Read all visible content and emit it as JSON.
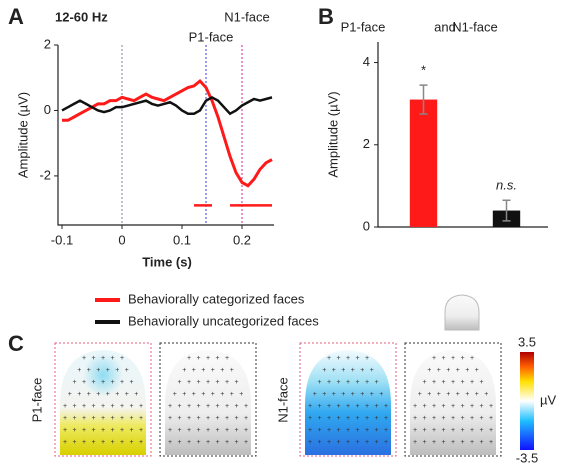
{
  "chart_data": [
    {
      "type": "line",
      "panel": "A",
      "title": "12-60 Hz",
      "xlabel": "Time (s)",
      "ylabel": "Amplitude (µV)",
      "x": [
        -0.1,
        -0.09,
        -0.08,
        -0.07,
        -0.06,
        -0.05,
        -0.04,
        -0.03,
        -0.02,
        -0.01,
        0,
        0.01,
        0.02,
        0.03,
        0.04,
        0.05,
        0.06,
        0.07,
        0.08,
        0.09,
        0.1,
        0.11,
        0.12,
        0.13,
        0.14,
        0.15,
        0.16,
        0.17,
        0.18,
        0.19,
        0.2,
        0.21,
        0.22,
        0.23,
        0.24,
        0.25
      ],
      "series": [
        {
          "name": "Behaviorally categorized faces",
          "color": "#ff1a1a",
          "values": [
            -0.3,
            -0.3,
            -0.2,
            -0.1,
            0,
            0.1,
            0.2,
            0.2,
            0.3,
            0.3,
            0.4,
            0.35,
            0.3,
            0.4,
            0.5,
            0.4,
            0.35,
            0.3,
            0.4,
            0.5,
            0.6,
            0.7,
            0.75,
            0.9,
            0.7,
            0.3,
            -0.2,
            -0.8,
            -1.4,
            -1.9,
            -2.2,
            -2.3,
            -2.1,
            -1.8,
            -1.6,
            -1.5
          ]
        },
        {
          "name": "Behaviorally uncategorized faces",
          "color": "#111111",
          "values": [
            0,
            0.1,
            0.2,
            0.3,
            0.2,
            0.1,
            0,
            -0.05,
            0,
            0.1,
            0.1,
            0.15,
            0.2,
            0.25,
            0.3,
            0.2,
            0.15,
            0.2,
            0.25,
            0.15,
            0,
            -0.1,
            -0.1,
            0,
            0.3,
            0.4,
            0.3,
            0.1,
            -0.1,
            0,
            0.15,
            0.25,
            0.35,
            0.3,
            0.35,
            0.4
          ]
        }
      ],
      "xlim": [
        -0.1,
        0.25
      ],
      "xticks": [
        -0.1,
        0,
        0.1,
        0.2
      ],
      "ylim": [
        -3.5,
        2
      ],
      "yticks": [
        -2,
        0,
        2
      ],
      "markers": [
        {
          "x": 0,
          "color": "#8a7aa8"
        },
        {
          "x": 0.14,
          "color": "#3a3ad8",
          "label": "P1-face"
        },
        {
          "x": 0.2,
          "color": "#d4209a",
          "label": "N1-face"
        }
      ],
      "significance": {
        "y": -2.9,
        "intervals": [
          [
            0.12,
            0.15
          ],
          [
            0.18,
            0.25
          ]
        ],
        "color": "#ff1a1a"
      }
    },
    {
      "type": "bar",
      "panel": "B",
      "title": [
        "P1-face",
        "and",
        "N1-face"
      ],
      "ylabel": "Amplitude (µV)",
      "categories": [
        null,
        null
      ],
      "values": [
        3.1,
        0.4
      ],
      "errors": [
        0.35,
        0.25
      ],
      "colors": [
        "#ff1a1a",
        "#111111"
      ],
      "value_labels": [
        "*",
        "n.s."
      ],
      "ylim": [
        0,
        4.5
      ],
      "yticks": [
        0,
        2,
        4
      ]
    },
    {
      "type": "topography",
      "panel": "C",
      "rows": [
        "P1-face",
        "N1-face"
      ],
      "row_colors": [
        "#3a3ad8",
        "#d4209a"
      ],
      "clim": [
        -3.5,
        3.5
      ],
      "cticks": [
        3.5,
        -3.5
      ],
      "unit": "µV"
    }
  ]
}
